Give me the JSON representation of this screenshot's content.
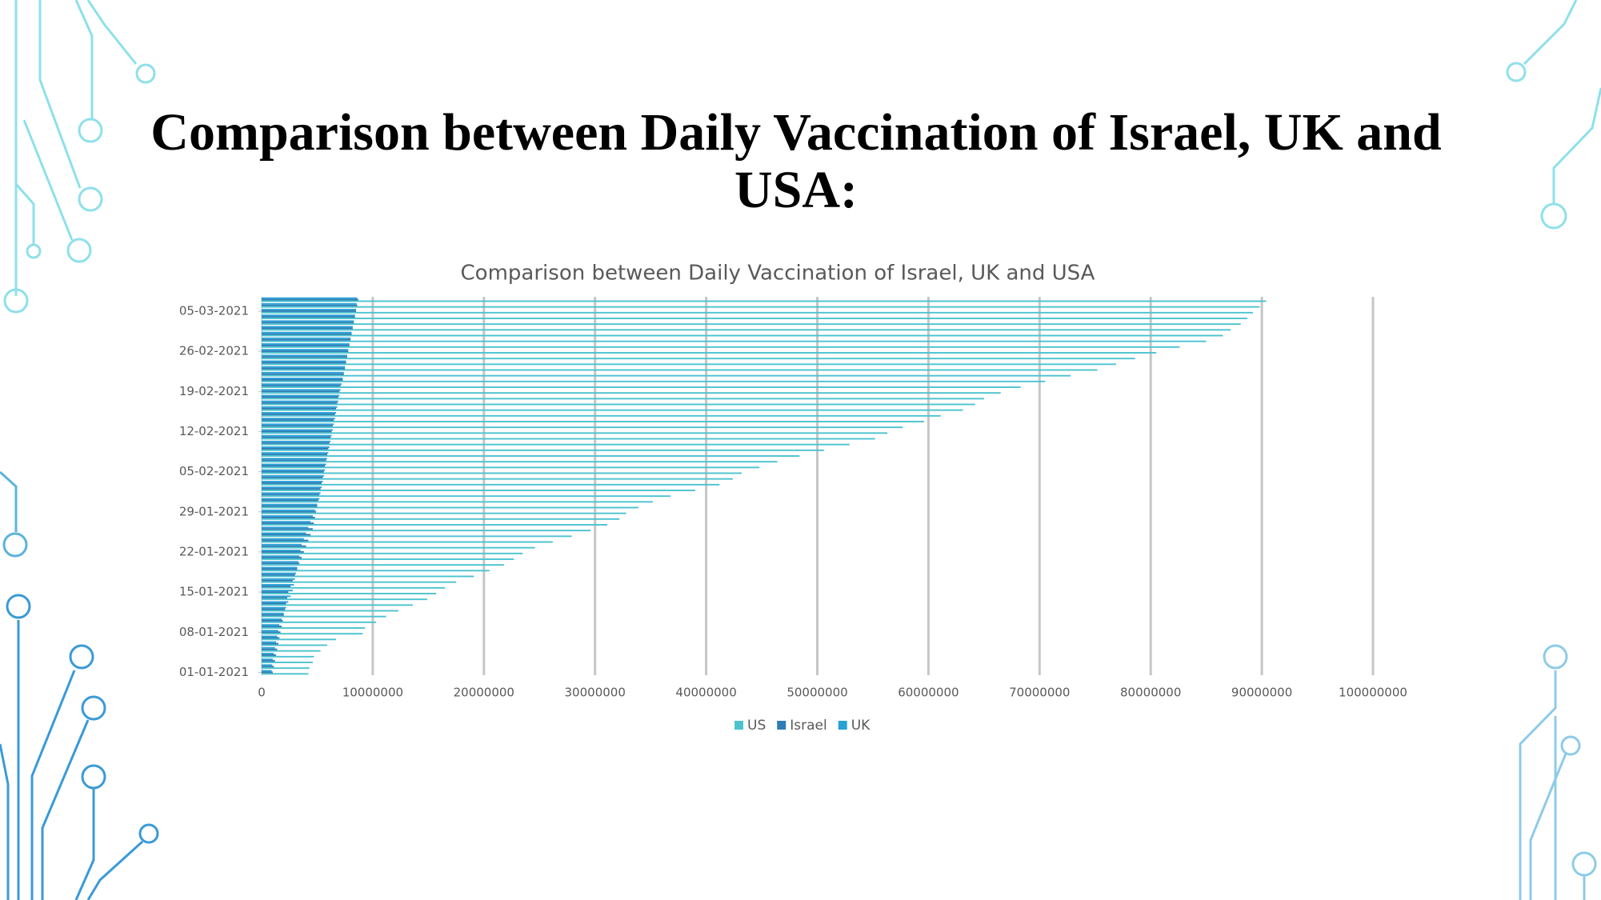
{
  "slide": {
    "title": "Comparison between Daily Vaccination of Israel, UK and USA:"
  },
  "chart_data": {
    "type": "bar",
    "orientation": "horizontal",
    "title": "Comparison between Daily Vaccination of Israel, UK and USA",
    "categories": [
      "01-01-2021",
      null,
      null,
      null,
      null,
      null,
      null,
      "08-01-2021",
      null,
      null,
      null,
      null,
      null,
      null,
      "15-01-2021",
      null,
      null,
      null,
      null,
      null,
      null,
      "22-01-2021",
      null,
      null,
      null,
      null,
      null,
      null,
      "29-01-2021",
      null,
      null,
      null,
      null,
      null,
      null,
      "05-02-2021",
      null,
      null,
      null,
      null,
      null,
      null,
      "12-02-2021",
      null,
      null,
      null,
      null,
      null,
      null,
      "19-02-2021",
      null,
      null,
      null,
      null,
      null,
      null,
      "26-02-2021",
      null,
      null,
      null,
      null,
      null,
      null,
      "05-03-2021",
      null,
      null
    ],
    "series": [
      {
        "name": "US",
        "color": "#4cc3cf",
        "values": [
          4200000,
          4300000,
          4600000,
          4700000,
          5300000,
          5900000,
          6700000,
          9100000,
          9300000,
          10300000,
          11200000,
          12300000,
          13600000,
          14900000,
          15700000,
          16500000,
          17500000,
          19100000,
          20500000,
          21800000,
          22700000,
          23500000,
          24600000,
          26200000,
          27900000,
          29600000,
          31100000,
          32200000,
          32800000,
          33900000,
          35200000,
          36800000,
          39000000,
          41200000,
          42400000,
          43200000,
          44800000,
          46400000,
          48400000,
          50600000,
          52900000,
          55200000,
          56300000,
          57700000,
          59600000,
          61100000,
          63100000,
          64200000,
          65000000,
          66500000,
          68300000,
          70500000,
          72800000,
          75200000,
          76900000,
          78600000,
          80500000,
          82600000,
          85000000,
          86500000,
          87200000,
          88100000,
          88700000,
          89200000,
          89800000,
          90400000
        ]
      },
      {
        "name": "Israel",
        "color": "#2e7db4",
        "values": [
          1000000,
          1100000,
          1200000,
          1300000,
          1400000,
          1500000,
          1600000,
          1700000,
          1800000,
          1900000,
          2000000,
          2100000,
          2200000,
          2300000,
          2400000,
          2600000,
          2800000,
          3000000,
          3200000,
          3400000,
          3600000,
          3800000,
          4000000,
          4200000,
          4400000,
          4600000,
          4700000,
          4800000,
          4900000,
          5000000,
          5100000,
          5200000,
          5300000,
          5400000,
          5500000,
          5600000,
          5700000,
          5800000,
          5900000,
          6000000,
          6100000,
          6200000,
          6300000,
          6400000,
          6500000,
          6600000,
          6700000,
          6800000,
          6900000,
          7000000,
          7100000,
          7300000,
          7400000,
          7500000,
          7600000,
          7700000,
          7800000,
          7900000,
          8000000,
          8100000,
          8200000,
          8300000,
          8400000,
          8500000,
          8600000,
          8700000
        ]
      },
      {
        "name": "UK",
        "color": "#2aa1d6",
        "values": [
          900000,
          950000,
          1000000,
          1100000,
          1200000,
          1300000,
          1400000,
          1500000,
          1600000,
          1800000,
          2000000,
          2200000,
          2400000,
          2600000,
          2800000,
          2900000,
          3000000,
          3100000,
          3200000,
          3300000,
          3400000,
          3500000,
          3600000,
          3800000,
          4000000,
          4200000,
          4400000,
          4600000,
          4800000,
          5000000,
          5200000,
          5300000,
          5400000,
          5500000,
          5600000,
          5700000,
          5800000,
          5900000,
          6000000,
          6100000,
          6200000,
          6300000,
          6400000,
          6500000,
          6600000,
          6700000,
          6800000,
          6900000,
          7000000,
          7100000,
          7200000,
          7300000,
          7400000,
          7500000,
          7600000,
          7700000,
          7800000,
          7900000,
          8000000,
          8100000,
          8200000,
          8300000,
          8400000,
          8500000,
          8550000,
          8600000
        ]
      }
    ],
    "xlim": [
      0,
      100000000
    ],
    "xticks": [
      0,
      10000000,
      20000000,
      30000000,
      40000000,
      50000000,
      60000000,
      70000000,
      80000000,
      90000000,
      100000000
    ],
    "grid": true,
    "legend": "bottom"
  }
}
